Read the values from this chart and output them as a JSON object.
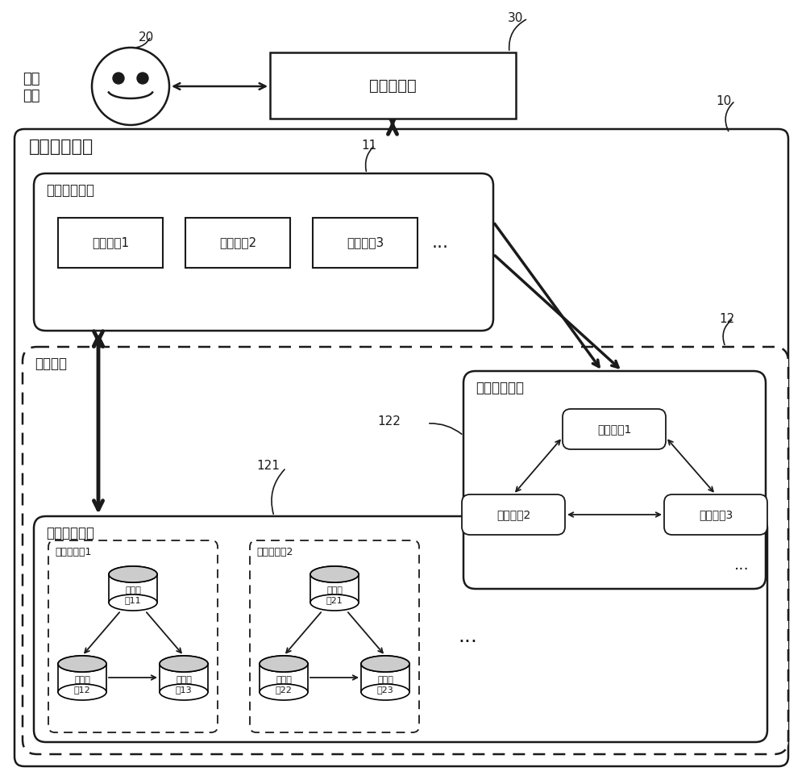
{
  "bg_color": "#ffffff",
  "line_color": "#1a1a1a",
  "fig_w": 10.0,
  "fig_h": 9.67,
  "label_20": "20",
  "label_30": "30",
  "label_10": "10",
  "label_11": "11",
  "label_12": "12",
  "label_121": "121",
  "label_122": "122",
  "label_app": "应用\n程序",
  "label_lb": "负载均衡器",
  "label_dps": "数据处理系统",
  "label_cjq": "计算节点集群",
  "label_cn1": "计算节点1",
  "label_cn2": "计算节点2",
  "label_cn3": "计算节点3",
  "label_se": "存储引擎",
  "label_mng": "管理节点集群",
  "label_mn1": "管理节点1",
  "label_mn2": "管理节点2",
  "label_mn3": "管理节点3",
  "label_snc": "存储节点集群",
  "label_sng1": "存储节点组1",
  "label_sng2": "存储节点组2",
  "label_sn11": "存储节\n点11",
  "label_sn12": "存储节\n点12",
  "label_sn13": "存储节\n点13",
  "label_sn21": "存储节\n点21",
  "label_sn22": "存储节\n点22",
  "label_sn23": "存储节\n点23"
}
